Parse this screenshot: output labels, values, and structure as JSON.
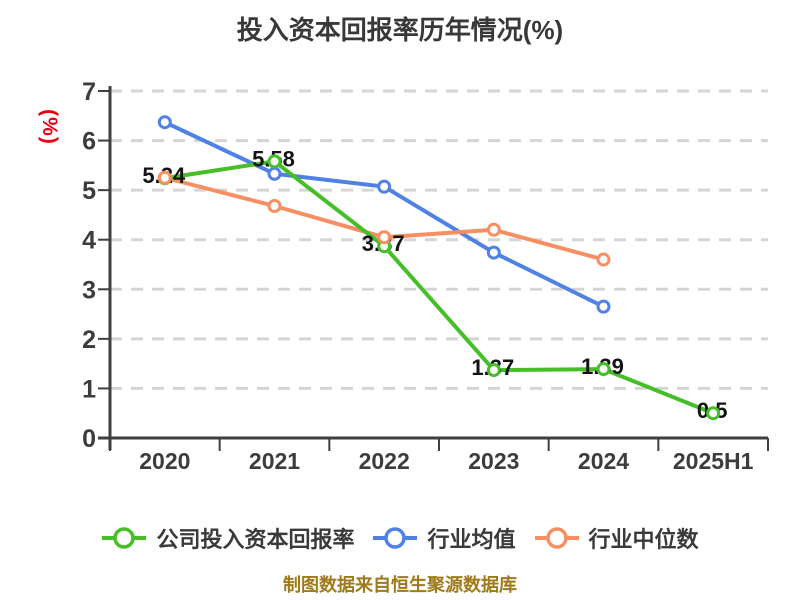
{
  "title": "投入资本回报率历年情况(%)",
  "y_axis": {
    "unit": "(%)",
    "min": 0,
    "max": 7,
    "ticks": [
      "0",
      "1",
      "2",
      "3",
      "4",
      "5",
      "6",
      "7"
    ]
  },
  "footer": "制图数据来自恒生聚源数据库",
  "colors": {
    "company_green": "#45be27",
    "industry_mean_blue": "#4f81e6",
    "industry_median_orange": "#f78f62",
    "grid_line": "#d5d5d5",
    "axis_line": "#3f3f3f",
    "tick_text": "#3c3c3c",
    "value_label_text": "#141414",
    "title_text": "#383838",
    "legend_text": "#3a3a3a",
    "unit_red": "#e60012",
    "footer_gold": "#9e7a1a",
    "background": "#ffffff"
  },
  "legend": {
    "items": [
      {
        "label": "公司投入资本回报率",
        "color": "#45be27"
      },
      {
        "label": "行业均值",
        "color": "#4f81e6"
      },
      {
        "label": "行业中位数",
        "color": "#f78f62"
      }
    ]
  },
  "chart_data": {
    "type": "line",
    "title": "投入资本回报率历年情况(%)",
    "xlabel": "",
    "ylabel": "(%)",
    "ylim": [
      0,
      7
    ],
    "grid": true,
    "grid_style": "dashed",
    "legend_position": "bottom",
    "categories": [
      "2020",
      "2021",
      "2022",
      "2023",
      "2024",
      "2025H1"
    ],
    "series": [
      {
        "name": "公司投入资本回报率",
        "color": "#45be27",
        "values": [
          5.24,
          5.58,
          3.87,
          1.37,
          1.39,
          0.5
        ],
        "data_labels": [
          "5.24",
          "5.58",
          "3.87",
          "1.37",
          "1.39",
          "0.5"
        ]
      },
      {
        "name": "行业均值",
        "color": "#4f81e6",
        "values": [
          6.37,
          5.33,
          5.07,
          3.74,
          2.65,
          null
        ],
        "data_labels": null
      },
      {
        "name": "行业中位数",
        "color": "#f78f62",
        "values": [
          5.25,
          4.68,
          4.05,
          4.2,
          3.6,
          null
        ],
        "data_labels": null
      }
    ]
  }
}
